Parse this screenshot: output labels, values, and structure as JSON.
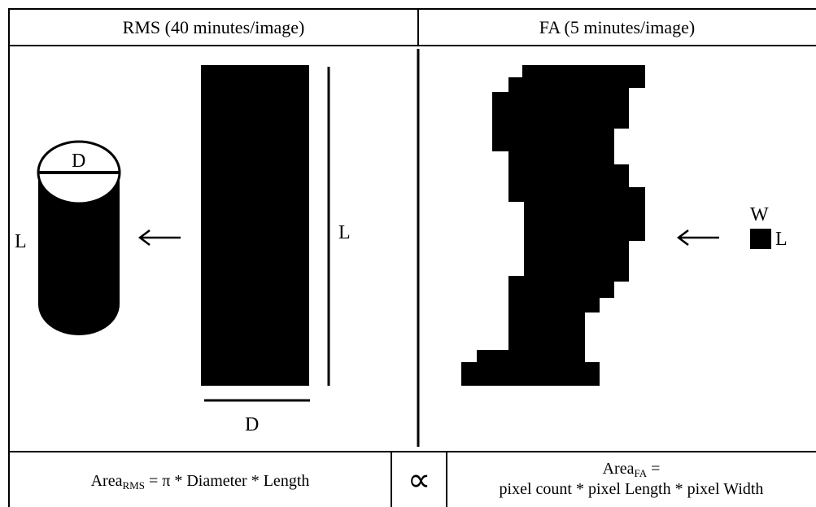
{
  "headers": {
    "rms": "RMS (40 minutes/image)",
    "fa": "FA (5 minutes/image)"
  },
  "labels": {
    "cyl_d": "D",
    "cyl_l": "L",
    "rect_l": "L",
    "rect_d": "D",
    "pixel_w": "W",
    "pixel_l": "L"
  },
  "formulas": {
    "rms_prefix": "Area",
    "rms_sub": "RMS",
    "rms_rest": " = π * Diameter * Length",
    "proportional": "∝",
    "fa_prefix": "Area",
    "fa_sub": "FA",
    "fa_eq": " =",
    "fa_line2": "pixel count * pixel Length * pixel Width"
  }
}
